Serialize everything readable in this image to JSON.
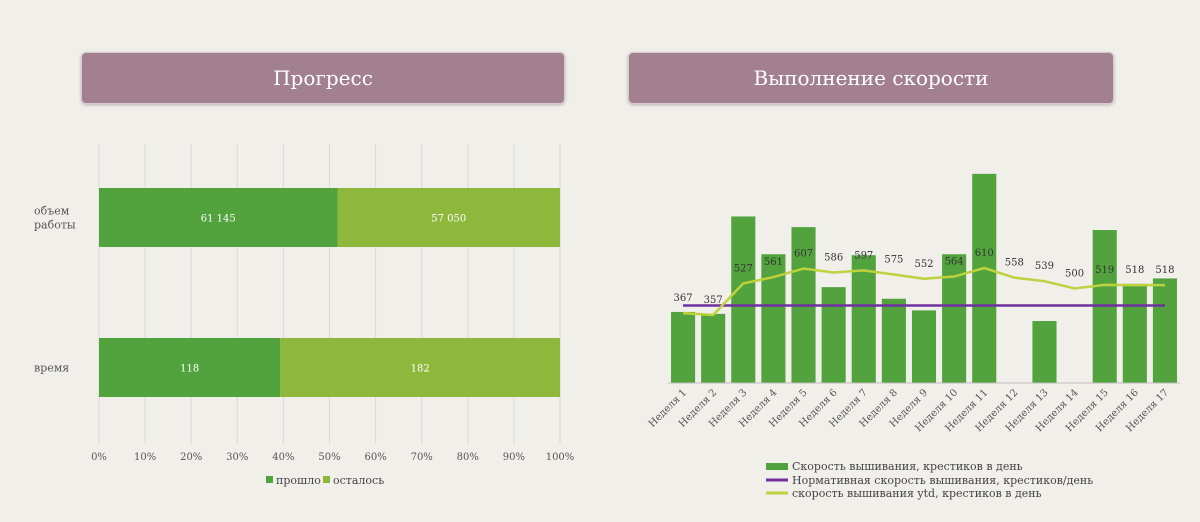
{
  "headers": {
    "progress": "Прогресс",
    "speed": "Выполнение скорости"
  },
  "colors": {
    "passed": "#52a23e",
    "remaining": "#8db83b",
    "speed_bar": "#52a23e",
    "norm_line": "#7030a0",
    "ytd_line": "#bdd23c",
    "grid": "#d9d9d9"
  },
  "chart_data": [
    {
      "type": "bar",
      "orientation": "horizontal",
      "stacked": "percent",
      "title": "Прогресс",
      "categories": [
        "объем работы",
        "время"
      ],
      "category_lines": [
        [
          "объем",
          "работы"
        ],
        [
          "время"
        ]
      ],
      "series": [
        {
          "name": "прошло",
          "values": [
            61145,
            118
          ],
          "labels": [
            "61 145",
            "118"
          ]
        },
        {
          "name": "осталось",
          "values": [
            57050,
            182
          ],
          "labels": [
            "57 050",
            "182"
          ]
        }
      ],
      "xticks": [
        "0%",
        "10%",
        "20%",
        "30%",
        "40%",
        "50%",
        "60%",
        "70%",
        "80%",
        "90%",
        "100%"
      ],
      "xlim": [
        0,
        100
      ],
      "grid": true,
      "legend": "bottom"
    },
    {
      "type": "bar+line",
      "title": "Выполнение скорости",
      "categories": [
        "Неделя 1",
        "Неделя 2",
        "Неделя 3",
        "Неделя 4",
        "Неделя 5",
        "Неделя 6",
        "Неделя 7",
        "Неделя 8",
        "Неделя 9",
        "Неделя 10",
        "Неделя 11",
        "Неделя 12",
        "Неделя 13",
        "Неделя 14",
        "Неделя 15",
        "Неделя 16",
        "Неделя 17"
      ],
      "bars": {
        "name": "Скорость вышивания, крестиков в день",
        "values": [
          367,
          357,
          860,
          665,
          805,
          495,
          660,
          435,
          375,
          665,
          1080,
          0,
          320,
          0,
          790,
          512,
          540
        ]
      },
      "norm": {
        "name": "Нормативная скорость вышивания, крестиков/день",
        "value": 400
      },
      "ytd": {
        "name": "скорость вышивания ytd, крестиков в день",
        "values": [
          367,
          357,
          527,
          561,
          607,
          586,
          597,
          575,
          552,
          564,
          610,
          558,
          539,
          500,
          519,
          518,
          518
        ]
      },
      "ylim": [
        0,
        1100
      ],
      "legend": "bottom"
    }
  ]
}
